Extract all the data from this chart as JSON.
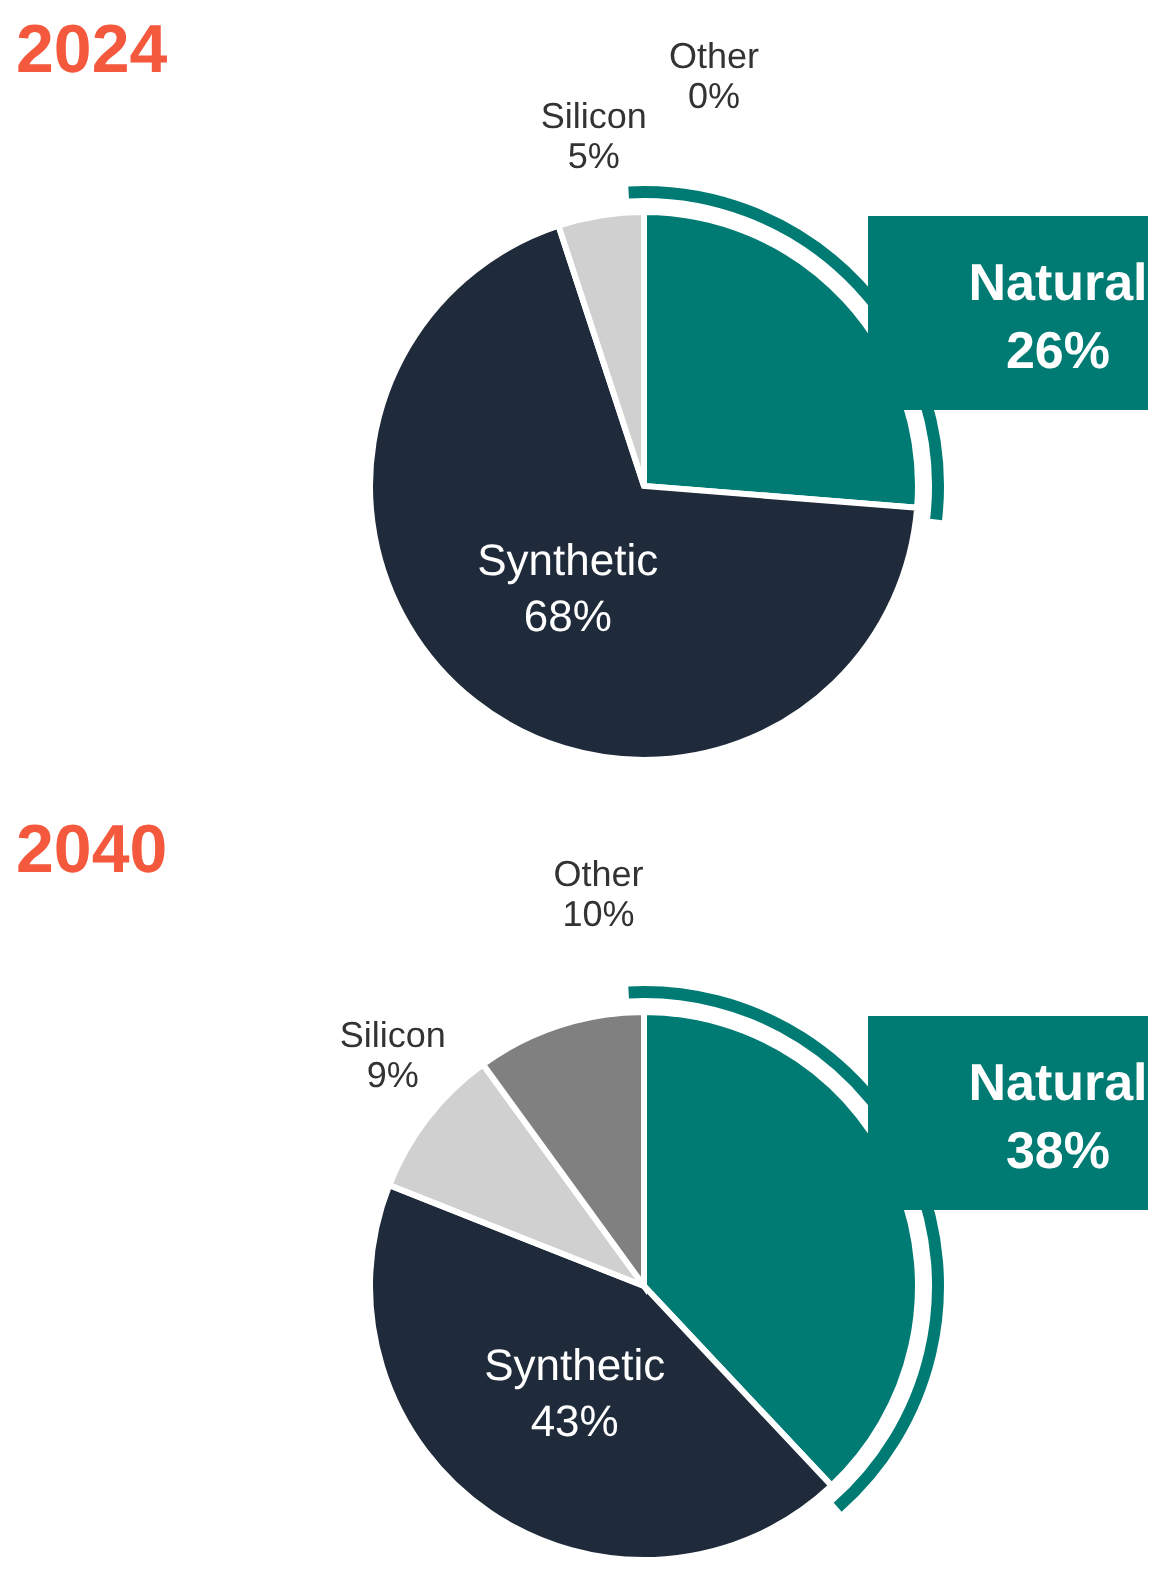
{
  "chart_data": [
    {
      "type": "pie",
      "title": "2024",
      "categories": [
        "Natural",
        "Synthetic",
        "Silicon",
        "Other"
      ],
      "values": [
        26,
        68,
        5,
        0
      ],
      "value_labels": [
        "26%",
        "68%",
        "5%",
        "0%"
      ],
      "colors": [
        "#007b73",
        "#1f2a3a",
        "#d0d0d0",
        "#808080"
      ],
      "legend": false
    },
    {
      "type": "pie",
      "title": "2040",
      "categories": [
        "Natural",
        "Synthetic",
        "Silicon",
        "Other"
      ],
      "values": [
        38,
        43,
        9,
        10
      ],
      "value_labels": [
        "38%",
        "43%",
        "9%",
        "10%"
      ],
      "colors": [
        "#007b73",
        "#1f2a3a",
        "#d0d0d0",
        "#808080"
      ],
      "legend": false
    }
  ]
}
